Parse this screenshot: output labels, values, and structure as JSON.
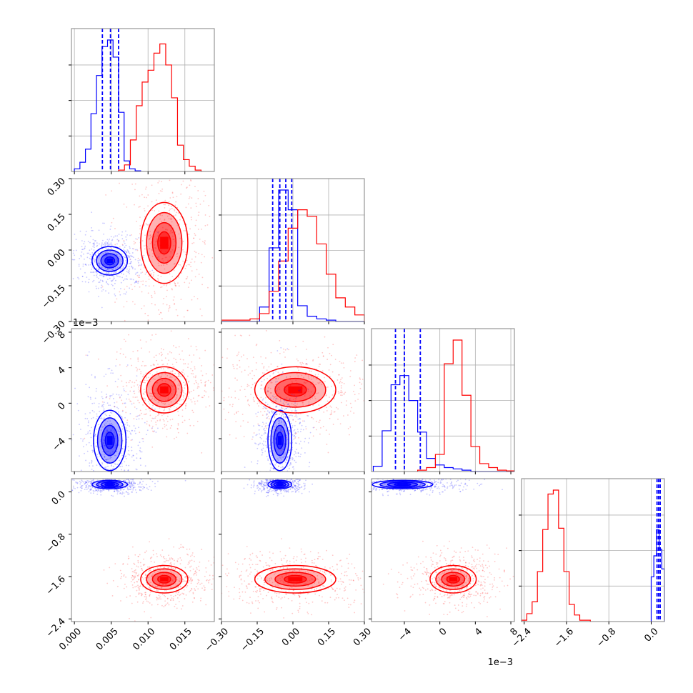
{
  "colors": {
    "blue": "#0000ff",
    "red": "#ff0000",
    "frame": "#808080",
    "grid": "#b0b0b0"
  },
  "chart_data": [
    {
      "type": "histogram",
      "panel": "p00",
      "param": 0,
      "ylim": [
        0,
        1
      ],
      "series": [
        {
          "color": "blue",
          "edges": [
            0.0,
            0.00075,
            0.0015,
            0.00225,
            0.003,
            0.00375,
            0.0045,
            0.00525,
            0.006,
            0.00675,
            0.0075,
            0.00825,
            0.009
          ],
          "counts": [
            0.02,
            0.07,
            0.17,
            0.44,
            0.73,
            0.95,
            1.0,
            0.87,
            0.45,
            0.08,
            0.02,
            0.005
          ]
        },
        {
          "color": "red",
          "edges": [
            0.006,
            0.0068,
            0.0076,
            0.0084,
            0.0092,
            0.01,
            0.0108,
            0.0116,
            0.0124,
            0.0132,
            0.014,
            0.0148,
            0.0156,
            0.0164,
            0.0172
          ],
          "counts": [
            0.01,
            0.05,
            0.24,
            0.5,
            0.68,
            0.77,
            0.9,
            0.97,
            0.81,
            0.56,
            0.2,
            0.09,
            0.04,
            0.01
          ]
        }
      ],
      "quantiles": [
        0.0038,
        0.0049,
        0.006
      ]
    },
    {
      "type": "histogram",
      "panel": "p11",
      "param": 1,
      "ylim": [
        0,
        1
      ],
      "series": [
        {
          "color": "blue",
          "edges": [
            -0.3,
            -0.26,
            -0.22,
            -0.18,
            -0.14,
            -0.1,
            -0.06,
            -0.02,
            0.02,
            0.06,
            0.1,
            0.14,
            0.18,
            0.22,
            0.26,
            0.3
          ],
          "counts": [
            0,
            0,
            0,
            0,
            0.11,
            0.56,
            1.0,
            0.85,
            0.12,
            0.04,
            0.02,
            0.01,
            0,
            0,
            0
          ]
        },
        {
          "color": "red",
          "edges": [
            -0.3,
            -0.26,
            -0.22,
            -0.18,
            -0.14,
            -0.1,
            -0.06,
            -0.02,
            0.02,
            0.06,
            0.1,
            0.14,
            0.18,
            0.22,
            0.26,
            0.3
          ],
          "counts": [
            0.01,
            0.01,
            0.01,
            0.02,
            0.06,
            0.23,
            0.46,
            0.71,
            0.85,
            0.8,
            0.59,
            0.36,
            0.18,
            0.11,
            0.05
          ]
        }
      ],
      "quantiles": [
        -0.085,
        -0.055,
        -0.03,
        -0.005
      ]
    },
    {
      "type": "histogram",
      "panel": "p22",
      "param": 2,
      "ylim": [
        0,
        1
      ],
      "series": [
        {
          "color": "blue",
          "edges": [
            -0.0075,
            -0.0065,
            -0.0055,
            -0.0045,
            -0.0035,
            -0.0025,
            -0.0015,
            -0.0005,
            0.0005,
            0.0015,
            0.0025,
            0.0035,
            0.0045,
            0.0055,
            0.0065,
            0.0075,
            0.0085
          ],
          "counts": [
            0.04,
            0.31,
            0.66,
            0.73,
            0.54,
            0.3,
            0.1,
            0.05,
            0.03,
            0.02,
            0.01,
            0,
            0,
            0,
            0,
            0
          ]
        },
        {
          "color": "red",
          "edges": [
            -0.0025,
            -0.0015,
            -0.0005,
            0.0005,
            0.0015,
            0.0025,
            0.0035,
            0.0045,
            0.0055,
            0.0065,
            0.0075,
            0.0085
          ],
          "counts": [
            0.01,
            0.03,
            0.13,
            0.82,
            1.0,
            0.58,
            0.19,
            0.06,
            0.03,
            0.01,
            0.005
          ]
        }
      ],
      "quantiles": [
        -0.005,
        -0.004,
        -0.0022
      ]
    },
    {
      "type": "histogram",
      "panel": "p33",
      "param": 3,
      "ylim": [
        0,
        1
      ],
      "series": [
        {
          "color": "red",
          "edges": [
            -2.45,
            -2.35,
            -2.25,
            -2.15,
            -2.05,
            -1.95,
            -1.85,
            -1.75,
            -1.65,
            -1.55,
            -1.45,
            -1.35,
            -1.25,
            -1.15
          ],
          "counts": [
            0.01,
            0.06,
            0.15,
            0.38,
            0.7,
            0.97,
            1.0,
            0.71,
            0.38,
            0.13,
            0.05,
            0.01,
            0.01
          ]
        },
        {
          "color": "blue",
          "edges": [
            0.0,
            0.05,
            0.1,
            0.15,
            0.2,
            0.25
          ],
          "counts": [
            0.34,
            0.5,
            0.7,
            0.55,
            0.4
          ]
        }
      ],
      "quantiles": [
        0.11,
        0.14,
        0.17
      ]
    },
    {
      "type": "scatter-density",
      "panel": "p10",
      "x_param": 0,
      "y_param": 1,
      "clouds": [
        {
          "color": "blue",
          "cx": 0.0048,
          "cy": -0.045,
          "sx": 0.0012,
          "sy": 0.03
        },
        {
          "color": "red",
          "cx": 0.0122,
          "cy": 0.03,
          "sx": 0.0016,
          "sy": 0.085
        }
      ]
    },
    {
      "type": "scatter-density",
      "panel": "p20",
      "x_param": 0,
      "y_param": 2,
      "clouds": [
        {
          "color": "blue",
          "cx": 0.0048,
          "cy": -0.0042,
          "sx": 0.0011,
          "sy": 0.0017
        },
        {
          "color": "red",
          "cx": 0.0122,
          "cy": 0.0015,
          "sx": 0.0016,
          "sy": 0.0013
        }
      ]
    },
    {
      "type": "scatter-density",
      "panel": "p21",
      "x_param": 1,
      "y_param": 2,
      "clouds": [
        {
          "color": "blue",
          "cx": -0.055,
          "cy": -0.0042,
          "sx": 0.025,
          "sy": 0.0017
        },
        {
          "color": "red",
          "cx": 0.01,
          "cy": 0.0015,
          "sx": 0.085,
          "sy": 0.0013
        }
      ]
    },
    {
      "type": "scatter-density",
      "panel": "p30",
      "x_param": 0,
      "y_param": 3,
      "clouds": [
        {
          "color": "blue",
          "cx": 0.0048,
          "cy": 0.14,
          "sx": 0.0012,
          "sy": 0.04
        },
        {
          "color": "red",
          "cx": 0.0122,
          "cy": -1.65,
          "sx": 0.0016,
          "sy": 0.13
        }
      ]
    },
    {
      "type": "scatter-density",
      "panel": "p31",
      "x_param": 1,
      "y_param": 3,
      "clouds": [
        {
          "color": "blue",
          "cx": -0.055,
          "cy": 0.14,
          "sx": 0.025,
          "sy": 0.04
        },
        {
          "color": "red",
          "cx": 0.01,
          "cy": -1.65,
          "sx": 0.085,
          "sy": 0.13
        }
      ]
    },
    {
      "type": "scatter-density",
      "panel": "p32",
      "x_param": 2,
      "y_param": 3,
      "clouds": [
        {
          "color": "blue",
          "cx": -0.0042,
          "cy": 0.14,
          "sx": 0.0017,
          "sy": 0.04
        },
        {
          "color": "red",
          "cx": 0.0015,
          "cy": -1.65,
          "sx": 0.0013,
          "sy": 0.13
        }
      ]
    }
  ],
  "axes": [
    {
      "id": "p0",
      "range": [
        -0.0004,
        0.019
      ],
      "ticks": [
        "0.000",
        "0.005",
        "0.010",
        "0.015"
      ],
      "tick_values": [
        0,
        0.005,
        0.01,
        0.015
      ]
    },
    {
      "id": "p1",
      "range": [
        -0.3,
        0.3
      ],
      "ticks": [
        "−0.30",
        "−0.15",
        "0.00",
        "0.15",
        "0.30"
      ],
      "tick_values": [
        -0.3,
        -0.15,
        0,
        0.15,
        0.3
      ]
    },
    {
      "id": "p2",
      "range": [
        -0.0077,
        0.0084
      ],
      "ticks": [
        "−4",
        "0",
        "4",
        "8"
      ],
      "tick_values": [
        -0.004,
        0,
        0.004,
        0.008
      ],
      "offset": "1e−3"
    },
    {
      "id": "p3",
      "range": [
        -2.45,
        0.25
      ],
      "ticks": [
        "−2.4",
        "−1.6",
        "−0.8",
        "0.0"
      ],
      "tick_values": [
        -2.4,
        -1.6,
        -0.8,
        0
      ]
    }
  ]
}
